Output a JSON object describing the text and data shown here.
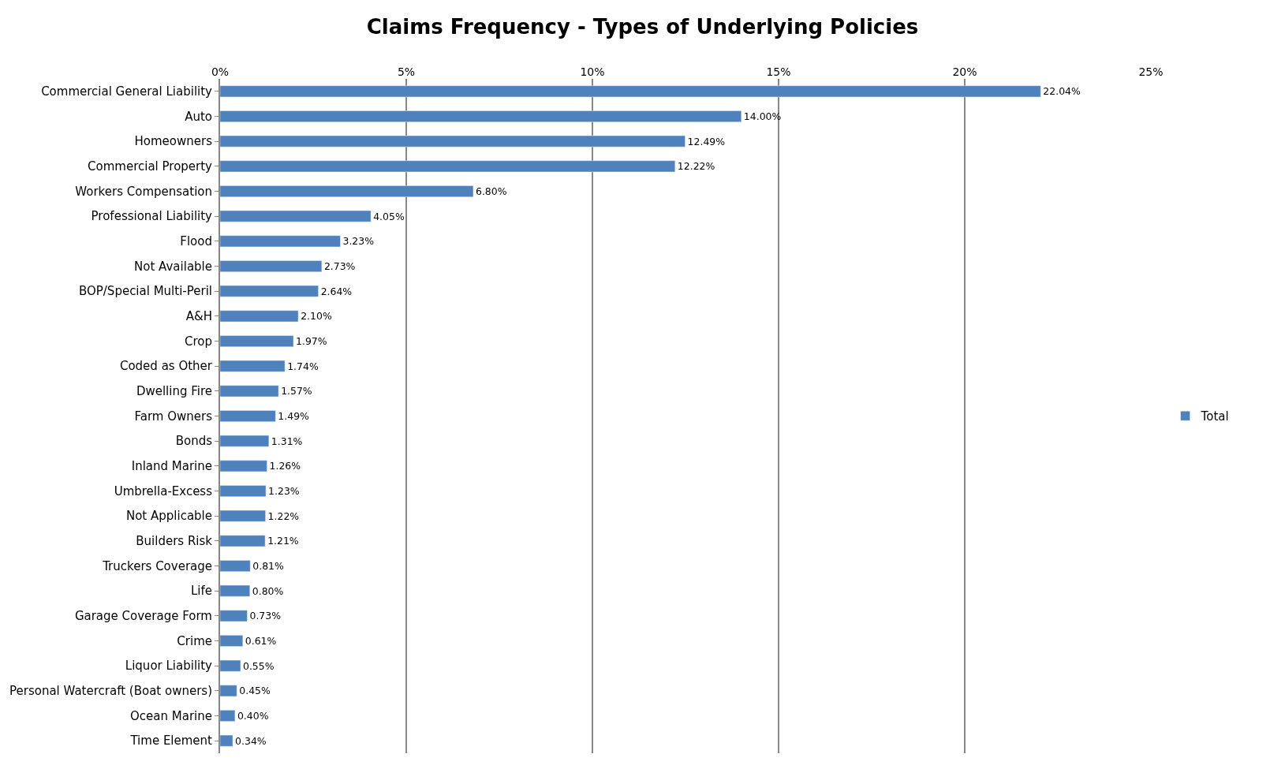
{
  "chart_data": {
    "type": "bar",
    "orientation": "horizontal",
    "title": "Claims Frequency - Types of Underlying Policies",
    "categories": [
      "Commercial General Liability",
      "Auto",
      "Homeowners",
      "Commercial Property",
      "Workers Compensation",
      "Professional Liability",
      "Flood",
      "Not Available",
      "BOP/Special Multi-Peril",
      "A&H",
      "Crop",
      "Coded as Other",
      "Dwelling Fire",
      "Farm Owners",
      "Bonds",
      "Inland Marine",
      "Umbrella-Excess",
      "Not Applicable",
      "Builders Risk",
      "Truckers Coverage",
      "Life",
      "Garage Coverage Form",
      "Crime",
      "Liquor Liability",
      "Personal Watercraft (Boat owners)",
      "Ocean Marine",
      "Time Element"
    ],
    "series": [
      {
        "name": "Total",
        "color": "#4f81bd",
        "values": [
          22.04,
          14.0,
          12.49,
          12.22,
          6.8,
          4.05,
          3.23,
          2.73,
          2.64,
          2.1,
          1.97,
          1.74,
          1.57,
          1.49,
          1.31,
          1.26,
          1.23,
          1.22,
          1.21,
          0.81,
          0.8,
          0.73,
          0.61,
          0.55,
          0.45,
          0.4,
          0.34
        ],
        "value_labels": [
          "22.04%",
          "14.00%",
          "12.49%",
          "12.22%",
          "6.80%",
          "4.05%",
          "3.23%",
          "2.73%",
          "2.64%",
          "2.10%",
          "1.97%",
          "1.74%",
          "1.57%",
          "1.49%",
          "1.31%",
          "1.26%",
          "1.23%",
          "1.22%",
          "1.21%",
          "0.81%",
          "0.80%",
          "0.73%",
          "0.61%",
          "0.55%",
          "0.45%",
          "0.40%",
          "0.34%"
        ]
      }
    ],
    "xlim": [
      0,
      25
    ],
    "xticks": [
      {
        "value": 0,
        "label": "0%"
      },
      {
        "value": 5,
        "label": "5%"
      },
      {
        "value": 10,
        "label": "10%"
      },
      {
        "value": 15,
        "label": "15%"
      },
      {
        "value": 20,
        "label": "20%"
      },
      {
        "value": 25,
        "label": "25%"
      }
    ],
    "grid": "x",
    "legend": "right"
  }
}
